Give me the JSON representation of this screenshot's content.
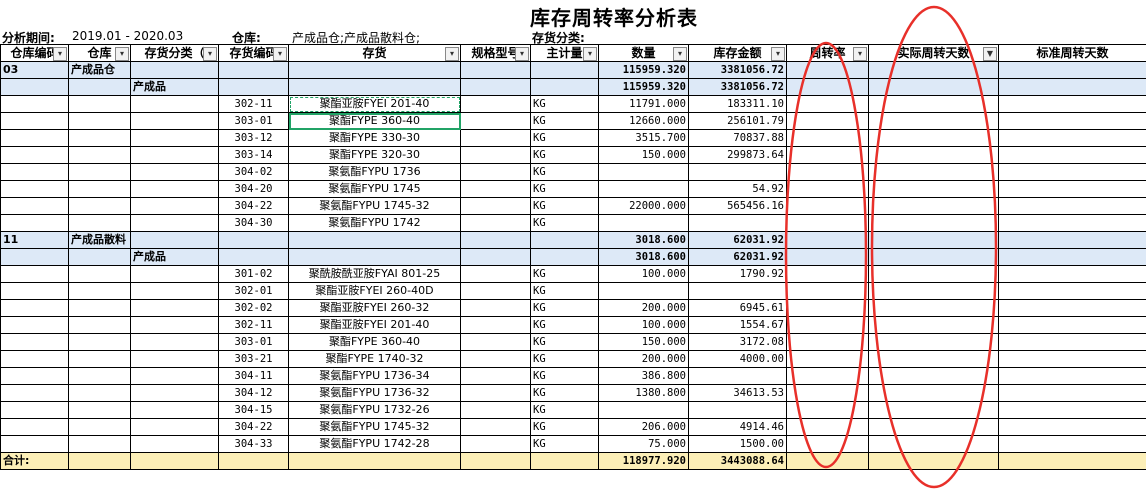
{
  "title": "库存周转率分析表",
  "meta": {
    "period_label": "分析期间:",
    "period_value": "2019.01 - 2020.03",
    "warehouse_label": "仓库:",
    "warehouse_value": "产成品仓;产成品散料仓;",
    "category_label": "存货分类:"
  },
  "columns": [
    "仓库编码",
    "仓库",
    "存货分类（",
    "存货编码",
    "存货",
    "规格型号",
    "主计量",
    "数量",
    "库存金额",
    "周转率",
    "实际周转天数",
    "标准周转天数"
  ],
  "rows": [
    {
      "kind": "group",
      "wh_code": "03",
      "wh": "产成品仓",
      "cat": "",
      "code": "",
      "item": "",
      "spec": "",
      "unit": "",
      "qty": "115959.320",
      "amt": "3381056.72"
    },
    {
      "kind": "group",
      "wh_code": "",
      "wh": "",
      "cat": "产成品",
      "code": "",
      "item": "",
      "spec": "",
      "unit": "",
      "qty": "115959.320",
      "amt": "3381056.72"
    },
    {
      "kind": "item",
      "code": "302-11",
      "item": "聚酯亚胺FYEI 201-40",
      "unit": "KG",
      "qty": "11791.000",
      "amt": "183311.10"
    },
    {
      "kind": "item",
      "code": "303-01",
      "item": "聚酯FYPE 360-40",
      "unit": "KG",
      "qty": "12660.000",
      "amt": "256101.79"
    },
    {
      "kind": "item",
      "code": "303-12",
      "item": "聚酯FYPE 330-30",
      "unit": "KG",
      "qty": "3515.700",
      "amt": "70837.88"
    },
    {
      "kind": "item",
      "code": "303-14",
      "item": "聚酯FYPE 320-30",
      "unit": "KG",
      "qty": "150.000",
      "amt": "299873.64"
    },
    {
      "kind": "item",
      "code": "304-02",
      "item": "聚氨酯FYPU 1736",
      "unit": "KG",
      "qty": "",
      "amt": ""
    },
    {
      "kind": "item",
      "code": "304-20",
      "item": "聚氨酯FYPU 1745",
      "unit": "KG",
      "qty": "",
      "amt": "54.92"
    },
    {
      "kind": "item",
      "code": "304-22",
      "item": "聚氨酯FYPU 1745-32",
      "unit": "KG",
      "qty": "22000.000",
      "amt": "565456.16"
    },
    {
      "kind": "item",
      "code": "304-30",
      "item": "聚氨酯FYPU 1742",
      "unit": "KG",
      "qty": "",
      "amt": ""
    },
    {
      "kind": "group",
      "wh_code": "11",
      "wh": "产成品散料",
      "cat": "",
      "code": "",
      "item": "",
      "spec": "",
      "unit": "",
      "qty": "3018.600",
      "amt": "62031.92"
    },
    {
      "kind": "group",
      "wh_code": "",
      "wh": "",
      "cat": "产成品",
      "code": "",
      "item": "",
      "spec": "",
      "unit": "",
      "qty": "3018.600",
      "amt": "62031.92"
    },
    {
      "kind": "item",
      "code": "301-02",
      "item": "聚酰胺酰亚胺FYAI 801-25",
      "unit": "KG",
      "qty": "100.000",
      "amt": "1790.92"
    },
    {
      "kind": "item",
      "code": "302-01",
      "item": "聚酯亚胺FYEI 260-40D",
      "unit": "KG",
      "qty": "",
      "amt": ""
    },
    {
      "kind": "item",
      "code": "302-02",
      "item": "聚酯亚胺FYEI 260-32",
      "unit": "KG",
      "qty": "200.000",
      "amt": "6945.61"
    },
    {
      "kind": "item",
      "code": "302-11",
      "item": "聚酯亚胺FYEI 201-40",
      "unit": "KG",
      "qty": "100.000",
      "amt": "1554.67"
    },
    {
      "kind": "item",
      "code": "303-01",
      "item": "聚酯FYPE 360-40",
      "unit": "KG",
      "qty": "150.000",
      "amt": "3172.08"
    },
    {
      "kind": "item",
      "code": "303-21",
      "item": "聚酯FYPE 1740-32",
      "unit": "KG",
      "qty": "200.000",
      "amt": "4000.00"
    },
    {
      "kind": "item",
      "code": "304-11",
      "item": "聚氨酯FYPU 1736-34",
      "unit": "KG",
      "qty": "386.800",
      "amt": ""
    },
    {
      "kind": "item",
      "code": "304-12",
      "item": "聚氨酯FYPU 1736-32",
      "unit": "KG",
      "qty": "1380.800",
      "amt": "34613.53"
    },
    {
      "kind": "item",
      "code": "304-15",
      "item": "聚氨酯FYPU 1732-26",
      "unit": "KG",
      "qty": "",
      "amt": ""
    },
    {
      "kind": "item",
      "code": "304-22",
      "item": "聚氨酯FYPU 1745-32",
      "unit": "KG",
      "qty": "206.000",
      "amt": "4914.46"
    },
    {
      "kind": "item",
      "code": "304-33",
      "item": "聚氨酯FYPU 1742-28",
      "unit": "KG",
      "qty": "75.000",
      "amt": "1500.00"
    }
  ],
  "total": {
    "label": "合计:",
    "qty": "118977.920",
    "amt": "3443088.64"
  },
  "colors": {
    "group_bg": "#dde9f7",
    "total_bg": "#fcefb7",
    "annotation": "#e8302a",
    "selection": "#21a366"
  }
}
